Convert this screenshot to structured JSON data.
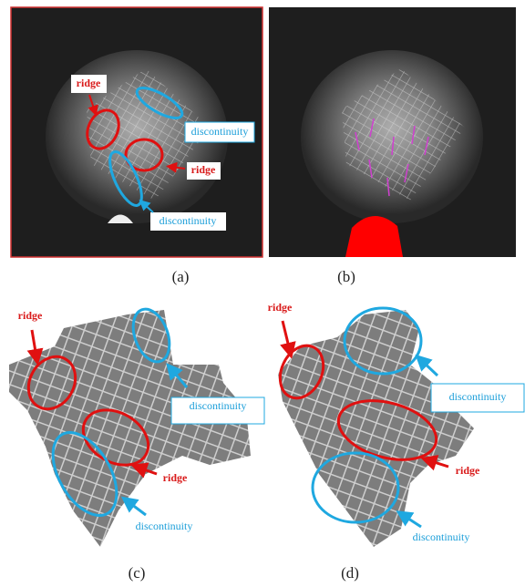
{
  "panels": [
    {
      "caption": "(a)",
      "annotations": [
        "ridge",
        "discontinuity",
        "ridge",
        "discontinuity"
      ]
    },
    {
      "caption": "(b)",
      "annotations": []
    },
    {
      "caption": "(c)",
      "annotations": [
        "ridge",
        "discontinuity",
        "ridge",
        "discontinuity"
      ]
    },
    {
      "caption": "(d)",
      "annotations": [
        "ridge",
        "discontinuity",
        "ridge",
        "discontinuity"
      ]
    }
  ]
}
